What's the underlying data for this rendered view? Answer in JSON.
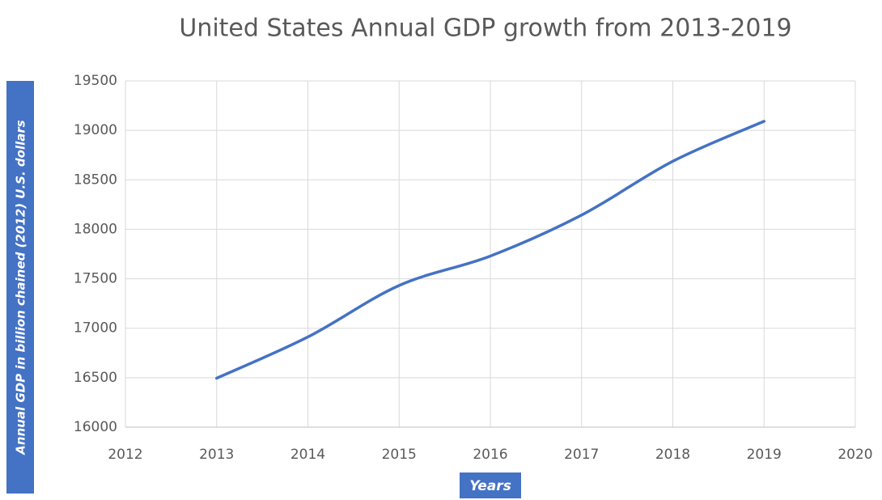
{
  "chart_data": {
    "type": "line",
    "title": "United States Annual GDP growth from 2013-2019",
    "x_label": "Years",
    "y_label": "Annual GDP in billion chained (2012) U.S. dollars",
    "x": [
      2013,
      2014,
      2015,
      2016,
      2017,
      2018,
      2019
    ],
    "series": [
      {
        "name": "GDP",
        "color": "#4472c4",
        "values": [
          16495,
          16912,
          17432,
          17730,
          18144,
          18688,
          19092
        ]
      }
    ],
    "xlim": [
      2012,
      2020
    ],
    "xticks": [
      2012,
      2013,
      2014,
      2015,
      2016,
      2017,
      2018,
      2019,
      2020
    ],
    "ylim": [
      16000,
      19500
    ],
    "yticks": [
      16000,
      16500,
      17000,
      17500,
      18000,
      18500,
      19000,
      19500
    ],
    "grid": true,
    "smooth": true
  }
}
